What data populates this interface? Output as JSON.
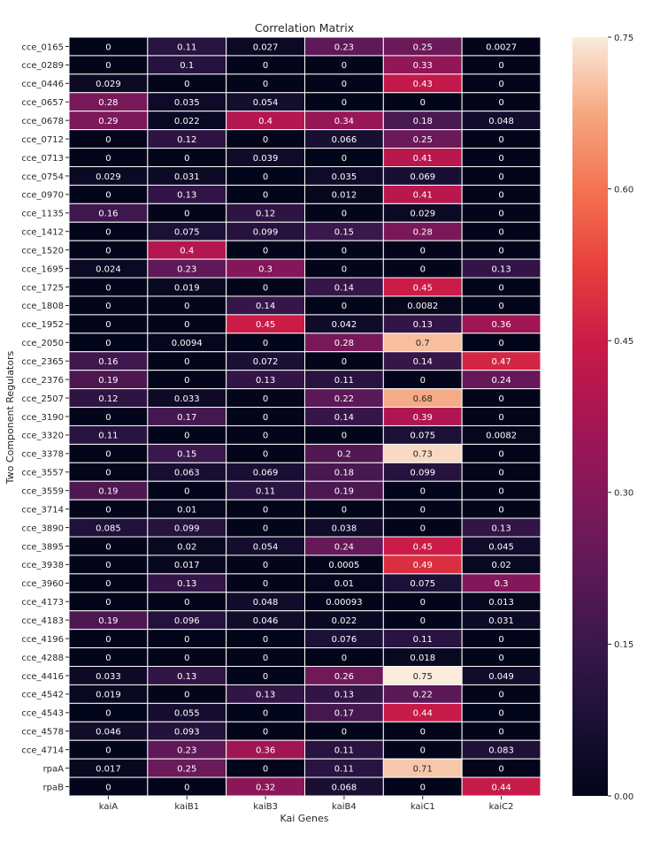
{
  "chart_data": {
    "type": "heatmap",
    "title": "Correlation Matrix",
    "xlabel": "Kai Genes",
    "ylabel": "Two Component Regulators",
    "columns": [
      "kaiA",
      "kaiB1",
      "kaiB3",
      "kaiB4",
      "kaiC1",
      "kaiC2"
    ],
    "rows": [
      "cce_0165",
      "cce_0289",
      "cce_0446",
      "cce_0657",
      "cce_0678",
      "cce_0712",
      "cce_0713",
      "cce_0754",
      "cce_0970",
      "cce_1135",
      "cce_1412",
      "cce_1520",
      "cce_1695",
      "cce_1725",
      "cce_1808",
      "cce_1952",
      "cce_2050",
      "cce_2365",
      "cce_2376",
      "cce_2507",
      "cce_3190",
      "cce_3320",
      "cce_3378",
      "cce_3557",
      "cce_3559",
      "cce_3714",
      "cce_3890",
      "cce_3895",
      "cce_3938",
      "cce_3960",
      "cce_4173",
      "cce_4183",
      "cce_4196",
      "cce_4288",
      "cce_4416",
      "cce_4542",
      "cce_4543",
      "cce_4578",
      "cce_4714",
      "rpaA",
      "rpaB"
    ],
    "values": [
      [
        "0",
        "0.11",
        "0.027",
        "0.23",
        "0.25",
        "0.0027"
      ],
      [
        "0",
        "0.1",
        "0",
        "0",
        "0.33",
        "0"
      ],
      [
        "0.029",
        "0",
        "0",
        "0",
        "0.43",
        "0"
      ],
      [
        "0.28",
        "0.035",
        "0.054",
        "0",
        "0",
        "0"
      ],
      [
        "0.29",
        "0.022",
        "0.4",
        "0.34",
        "0.18",
        "0.048"
      ],
      [
        "0",
        "0.12",
        "0",
        "0.066",
        "0.25",
        "0"
      ],
      [
        "0",
        "0",
        "0.039",
        "0",
        "0.41",
        "0"
      ],
      [
        "0.029",
        "0.031",
        "0",
        "0.035",
        "0.069",
        "0"
      ],
      [
        "0",
        "0.13",
        "0",
        "0.012",
        "0.41",
        "0"
      ],
      [
        "0.16",
        "0",
        "0.12",
        "0",
        "0.029",
        "0"
      ],
      [
        "0",
        "0.075",
        "0.099",
        "0.15",
        "0.28",
        "0"
      ],
      [
        "0",
        "0.4",
        "0",
        "0",
        "0",
        "0"
      ],
      [
        "0.024",
        "0.23",
        "0.3",
        "0",
        "0",
        "0.13"
      ],
      [
        "0",
        "0.019",
        "0",
        "0.14",
        "0.45",
        "0"
      ],
      [
        "0",
        "0",
        "0.14",
        "0",
        "0.0082",
        "0"
      ],
      [
        "0",
        "0",
        "0.45",
        "0.042",
        "0.13",
        "0.36"
      ],
      [
        "0",
        "0.0094",
        "0",
        "0.28",
        "0.7",
        "0"
      ],
      [
        "0.16",
        "0",
        "0.072",
        "0",
        "0.14",
        "0.47"
      ],
      [
        "0.19",
        "0",
        "0.13",
        "0.11",
        "0",
        "0.24"
      ],
      [
        "0.12",
        "0.033",
        "0",
        "0.22",
        "0.68",
        "0"
      ],
      [
        "0",
        "0.17",
        "0",
        "0.14",
        "0.39",
        "0"
      ],
      [
        "0.11",
        "0",
        "0",
        "0",
        "0.075",
        "0.0082"
      ],
      [
        "0",
        "0.15",
        "0",
        "0.2",
        "0.73",
        "0"
      ],
      [
        "0",
        "0.063",
        "0.069",
        "0.18",
        "0.099",
        "0"
      ],
      [
        "0.19",
        "0",
        "0.11",
        "0.19",
        "0",
        "0"
      ],
      [
        "0",
        "0.01",
        "0",
        "0",
        "0",
        "0"
      ],
      [
        "0.085",
        "0.099",
        "0",
        "0.038",
        "0",
        "0.13"
      ],
      [
        "0",
        "0.02",
        "0.054",
        "0.24",
        "0.45",
        "0.045"
      ],
      [
        "0",
        "0.017",
        "0",
        "0.0005",
        "0.49",
        "0.02"
      ],
      [
        "0",
        "0.13",
        "0",
        "0.01",
        "0.075",
        "0.3"
      ],
      [
        "0",
        "0",
        "0.048",
        "0.00093",
        "0",
        "0.013"
      ],
      [
        "0.19",
        "0.096",
        "0.046",
        "0.022",
        "0",
        "0.031"
      ],
      [
        "0",
        "0",
        "0",
        "0.076",
        "0.11",
        "0"
      ],
      [
        "0",
        "0",
        "0",
        "0",
        "0.018",
        "0"
      ],
      [
        "0.033",
        "0.13",
        "0",
        "0.26",
        "0.75",
        "0.049"
      ],
      [
        "0.019",
        "0",
        "0.13",
        "0.13",
        "0.22",
        "0"
      ],
      [
        "0",
        "0.055",
        "0",
        "0.17",
        "0.44",
        "0"
      ],
      [
        "0.046",
        "0.093",
        "0",
        "0",
        "0",
        "0"
      ],
      [
        "0",
        "0.23",
        "0.36",
        "0.11",
        "0",
        "0.083"
      ],
      [
        "0.017",
        "0.25",
        "0",
        "0.11",
        "0.71",
        "0"
      ],
      [
        "0",
        "0",
        "0.32",
        "0.068",
        "0",
        "0.44"
      ]
    ],
    "colorbar": {
      "min": 0,
      "max": 0.75,
      "ticks": [
        "0.00",
        "0.15",
        "0.30",
        "0.45",
        "0.60",
        "0.75"
      ],
      "colormap": "rocket"
    },
    "grid": true,
    "annotations": true
  },
  "colors": {
    "cell_border": "#ffffff",
    "text_dark_background": "#ffffff",
    "text_light_background": "#262626",
    "axis_text": "#262626"
  }
}
